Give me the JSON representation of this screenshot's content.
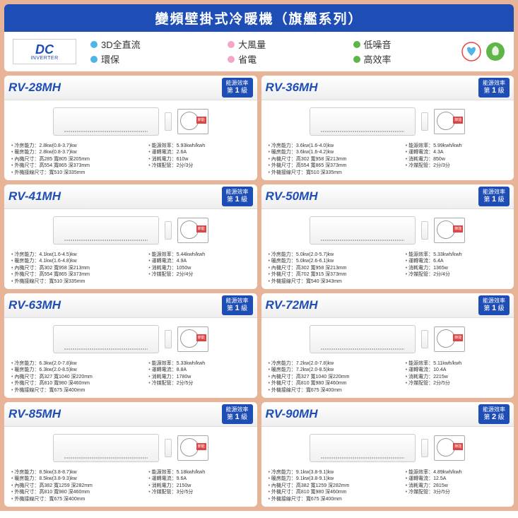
{
  "title": "變頻壁掛式冷暖機（旗艦系列）",
  "dc_logo": {
    "top": "DC",
    "bottom": "INVERTER"
  },
  "features": [
    {
      "label": "3D全直流",
      "color": "#4fb4e6"
    },
    {
      "label": "大風量",
      "color": "#f4a6c8"
    },
    {
      "label": "低噪音",
      "color": "#5fb548"
    },
    {
      "label": "環保",
      "color": "#4fb4e6"
    },
    {
      "label": "省電",
      "color": "#f4a6c8"
    },
    {
      "label": "高效率",
      "color": "#5fb548"
    }
  ],
  "energy_label_title": "能源效率",
  "products": [
    {
      "model": "RV-28MH",
      "energy_level": "1",
      "left": [
        "冷房能力：2.8kw(0.8-3.7)kw",
        "暖房能力：2.8kw(0.8-3.7)kw",
        "內機尺寸：高285 寬805 深205mm",
        "外機尺寸：高554 寬865 深373mm",
        "外機接線尺寸：寬510 深335mm"
      ],
      "right": [
        "能源效率：5.93kwh/kwh",
        "運轉電流：2.6A",
        "消耗電力：610w",
        "冷媒配管：2分/3分"
      ]
    },
    {
      "model": "RV-36MH",
      "energy_level": "1",
      "left": [
        "冷房能力：3.6kw(1.6-4.0)kw",
        "暖房能力：3.6kw(1.6-4.2)kw",
        "內機尺寸：高302 寬958 深213mm",
        "外機尺寸：高554 寬865 深373mm",
        "外機接線尺寸：寬510 深335mm"
      ],
      "right": [
        "能源效率：5.99kwh/kwh",
        "運轉電流：4.3A",
        "消耗電力：850w",
        "冷媒配管：2分/3分"
      ]
    },
    {
      "model": "RV-41MH",
      "energy_level": "1",
      "left": [
        "冷房能力：4.1kw(1.6-4.5)kw",
        "暖房能力：4.1kw(1.6-4.8)kw",
        "內機尺寸：高302 寬958 深213mm",
        "外機尺寸：高554 寬865 深373mm",
        "外機接線尺寸：寬510 深335mm"
      ],
      "right": [
        "能源效率：5.44kwh/kwh",
        "運轉電流：4.9A",
        "消耗電力：1050w",
        "冷媒配管：2分/4分"
      ]
    },
    {
      "model": "RV-50MH",
      "energy_level": "1",
      "left": [
        "冷房能力：5.0kw(2.0-5.7)kw",
        "暖房能力：5.0kw(2.6-6.1)kw",
        "內機尺寸：高302 寬958 深213mm",
        "外機尺寸：高702 寬915 深373mm",
        "外機接線尺寸：寬540 深343mm"
      ],
      "right": [
        "能源效率：5.33kwh/kwh",
        "運轉電流：6.4A",
        "消耗電力：1365w",
        "冷媒配管：2分/4分"
      ]
    },
    {
      "model": "RV-63MH",
      "energy_level": "1",
      "left": [
        "冷房能力：6.3kw(2.0-7.8)kw",
        "暖房能力：6.3kw(2.0-8.5)kw",
        "內機尺寸：高327 寬1040 深220mm",
        "外機尺寸：高810 寬980 深460mm",
        "外機接線尺寸：寬675 深400mm"
      ],
      "right": [
        "能源效率：5.33kwh/kwh",
        "運轉電流：8.8A",
        "消耗電力：1780w",
        "冷媒配管：2分/5分"
      ]
    },
    {
      "model": "RV-72MH",
      "energy_level": "1",
      "left": [
        "冷房能力：7.2kw(2.0-7.8)kw",
        "暖房能力：7.2kw(2.0-8.5)kw",
        "內機尺寸：高327 寬1040 深220mm",
        "外機尺寸：高810 寬980 深460mm",
        "外機接線尺寸：寬675 深400mm"
      ],
      "right": [
        "能源效率：5.11kwh/kwh",
        "運轉電流：10.4A",
        "消耗電力：2215w",
        "冷媒配管：2分/5分"
      ]
    },
    {
      "model": "RV-85MH",
      "energy_level": "1",
      "left": [
        "冷房能力：8.5kw(3.8-8.7)kw",
        "暖房能力：8.5kw(3.8-9.3)kw",
        "內機尺寸：高382 寬1259 深282mm",
        "外機尺寸：高810 寬980 深460mm",
        "外機接線尺寸：寬675 深400mm"
      ],
      "right": [
        "能源效率：5.18kwh/kwh",
        "運轉電流：9.6A",
        "消耗電力：2150w",
        "冷媒配管：3分/5分"
      ]
    },
    {
      "model": "RV-90MH",
      "energy_level": "2",
      "left": [
        "冷房能力：9.1kw(3.8-9.1)kw",
        "暖房能力：9.1kw(3.8-9.1)kw",
        "內機尺寸：高382 寬1259 深282mm",
        "外機尺寸：高810 寬980 深460mm",
        "外機接線尺寸：寬675 深400mm"
      ],
      "right": [
        "能源效率：4.89kwh/kwh",
        "運轉電流：12.5A",
        "消耗電力：2815w",
        "冷媒配管：3分/5分"
      ]
    }
  ]
}
